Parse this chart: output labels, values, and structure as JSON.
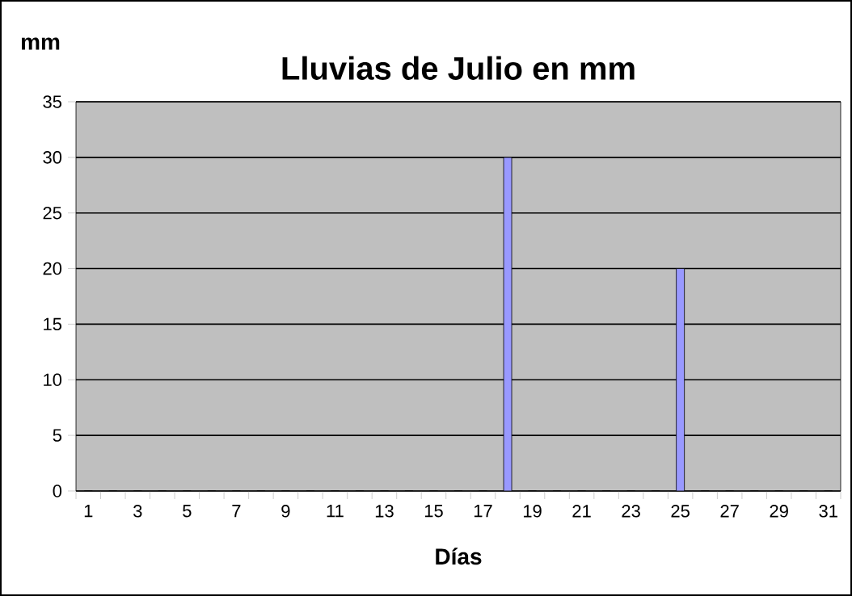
{
  "chart_data": {
    "type": "bar",
    "title": "Lluvias de Julio en mm",
    "xlabel": "Días",
    "ylabel": "mm",
    "categories": [
      "1",
      null,
      "3",
      null,
      "5",
      null,
      "7",
      null,
      "9",
      null,
      "11",
      null,
      "13",
      null,
      "15",
      null,
      "17",
      null,
      "19",
      null,
      "21",
      null,
      "23",
      null,
      "25",
      null,
      "27",
      null,
      "29",
      null,
      "31"
    ],
    "values": [
      0,
      0,
      0,
      0,
      0,
      0,
      0,
      0,
      0,
      0,
      0,
      0,
      0,
      0,
      0,
      0,
      0,
      30,
      0,
      0,
      0,
      0,
      0,
      0,
      20,
      0,
      0,
      0,
      0,
      0,
      0
    ],
    "color": "#9999ff",
    "ylim": [
      0,
      35
    ],
    "yticks": [
      0,
      5,
      10,
      15,
      20,
      25,
      30,
      35
    ],
    "grid": "y"
  }
}
